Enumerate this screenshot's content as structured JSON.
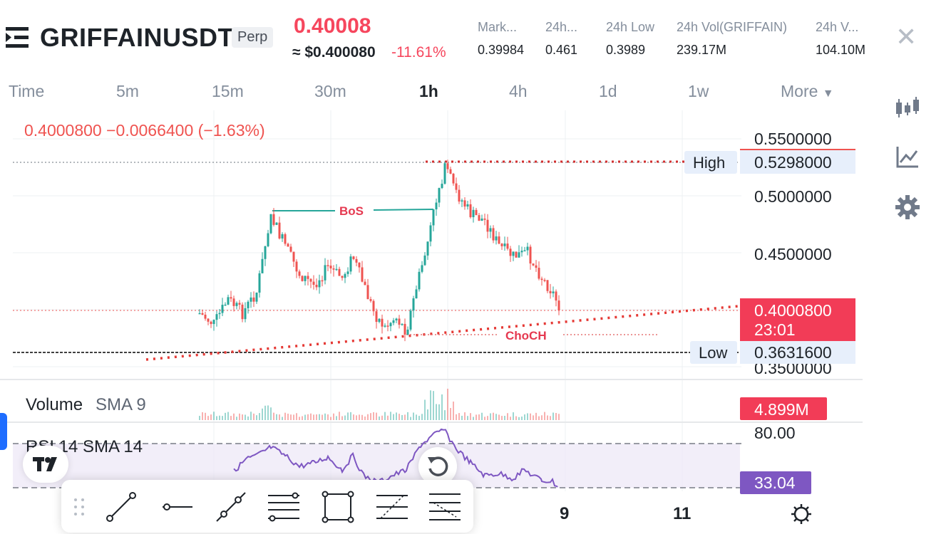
{
  "header": {
    "symbol": "GRIFFAINUSDT",
    "badge": "Perp",
    "last_price": "0.40008",
    "usd_price": "≈ $0.400080",
    "change_pct": "-11.61%",
    "stats": [
      {
        "label": "Mark...",
        "value": "0.39984"
      },
      {
        "label": "24h...",
        "value": "0.461"
      },
      {
        "label": "24h Low",
        "value": "0.3989"
      },
      {
        "label": "24h Vol(GRIFFAIN)",
        "value": "239.17M"
      },
      {
        "label": "24h V...",
        "value": "104.10M"
      }
    ]
  },
  "timeframes": [
    "Time",
    "5m",
    "15m",
    "30m",
    "1h",
    "4h",
    "1d",
    "1w",
    "More"
  ],
  "active_timeframe": "1h",
  "chart": {
    "info_line": "0.4000800  −0.0066400 (−1.63%)",
    "y_axis_labels": [
      "0.5500000",
      "0.5000000",
      "0.4500000",
      "0.3500000"
    ],
    "high_label": "High",
    "high_value": "0.5298000",
    "low_label": "Low",
    "low_value": "0.3631600",
    "current_price": "0.4000800",
    "countdown": "23:01",
    "annotation_bos": "BoS",
    "annotation_choch": "ChoCH",
    "x_axis_labels": [
      "9",
      "11"
    ]
  },
  "volume": {
    "label": "Volume",
    "sma": "SMA 9",
    "value": "4.899M"
  },
  "rsi": {
    "label": "RSI 14 SMA 14",
    "level_80": "80.00",
    "value": "33.04"
  },
  "colors": {
    "up": "#26a69a",
    "down": "#ef5350",
    "accent_red": "#f6465d",
    "rsi": "#7e57c2"
  },
  "icons": [
    "menu-icon",
    "close-icon",
    "candles-icon",
    "indicator-icon",
    "settings-icon",
    "tradingview-logo",
    "reset-icon",
    "gear-icon"
  ],
  "tools": [
    "drag-handle",
    "trend-line",
    "horizontal-line",
    "ray-line",
    "parallel-channel",
    "rectangle",
    "fib-retracement",
    "fib-extension"
  ]
}
